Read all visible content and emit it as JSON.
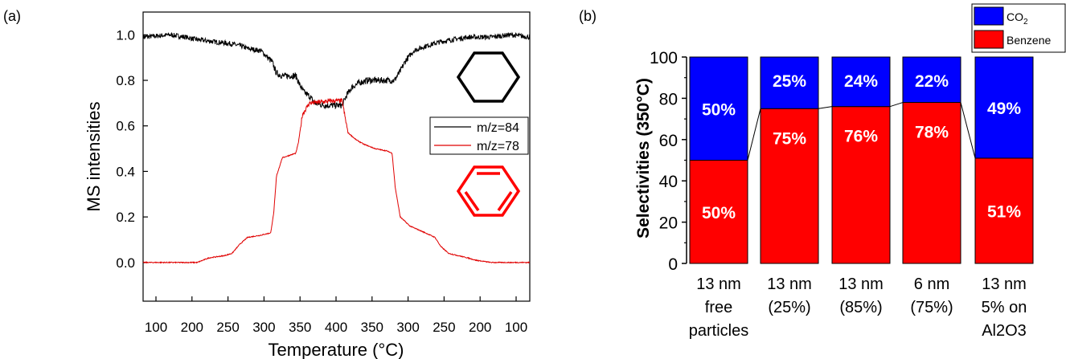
{
  "panels": {
    "a": {
      "label": "(a)"
    },
    "b": {
      "label": "(b)"
    }
  },
  "colors": {
    "m84": "#000000",
    "m78": "#e00000",
    "co2": "#0000ff",
    "benzene": "#ff0000",
    "bar_text": "#ffffff"
  },
  "icons": [
    "cyclohexane-structure-icon",
    "benzene-structure-icon"
  ],
  "chart_data": [
    {
      "type": "line",
      "panel": "(a)",
      "xlabel": "Temperature (°C)",
      "ylabel": "MS intensities",
      "x_ticks": [
        "100",
        "200",
        "250",
        "300",
        "350",
        "400",
        "350",
        "300",
        "250",
        "200",
        "100"
      ],
      "y_ticks": [
        "0.0",
        "0.2",
        "0.4",
        "0.6",
        "0.8",
        "1.0"
      ],
      "xlim": [
        0,
        100
      ],
      "ylim": [
        -0.17,
        1.1
      ],
      "x_note": "x is relative progress (0-100) along a heating ramp to ~400 °C followed by cooling; tick labels show the temperature",
      "legend": {
        "placement": "right",
        "entries": [
          "m/z=84",
          "m/z=78"
        ]
      },
      "series": [
        {
          "name": "m/z=84",
          "color": "#000000",
          "points": [
            [
              0,
              0.99
            ],
            [
              7,
              1.0
            ],
            [
              11,
              0.99
            ],
            [
              13.5,
              0.98
            ],
            [
              23,
              0.96
            ],
            [
              25.5,
              0.95
            ],
            [
              27,
              0.94
            ],
            [
              30.5,
              0.93
            ],
            [
              33.4,
              0.88
            ],
            [
              34.5,
              0.83
            ],
            [
              36,
              0.82
            ],
            [
              39.5,
              0.82
            ],
            [
              40.5,
              0.78
            ],
            [
              41.5,
              0.75
            ],
            [
              43,
              0.73
            ],
            [
              44.5,
              0.7
            ],
            [
              47,
              0.69
            ],
            [
              49,
              0.69
            ],
            [
              51.5,
              0.69
            ],
            [
              52.5,
              0.73
            ],
            [
              54,
              0.77
            ],
            [
              56,
              0.79
            ],
            [
              58,
              0.8
            ],
            [
              61,
              0.8
            ],
            [
              63.5,
              0.8
            ],
            [
              65,
              0.8
            ],
            [
              66.5,
              0.84
            ],
            [
              68,
              0.89
            ],
            [
              70,
              0.93
            ],
            [
              73,
              0.95
            ],
            [
              77,
              0.97
            ],
            [
              84,
              0.99
            ],
            [
              90,
              0.99
            ],
            [
              95,
              1.0
            ],
            [
              100,
              0.99
            ]
          ]
        },
        {
          "name": "m/z=78",
          "color": "#e00000",
          "points": [
            [
              0,
              0.0
            ],
            [
              14,
              0.0
            ],
            [
              17,
              0.02
            ],
            [
              21,
              0.03
            ],
            [
              23,
              0.04
            ],
            [
              25,
              0.08
            ],
            [
              27,
              0.11
            ],
            [
              30.5,
              0.12
            ],
            [
              33,
              0.13
            ],
            [
              33.8,
              0.22
            ],
            [
              34.5,
              0.38
            ],
            [
              36,
              0.46
            ],
            [
              39.5,
              0.48
            ],
            [
              40.2,
              0.53
            ],
            [
              41.2,
              0.65
            ],
            [
              43,
              0.7
            ],
            [
              49,
              0.71
            ],
            [
              51.5,
              0.71
            ],
            [
              52.2,
              0.64
            ],
            [
              53,
              0.57
            ],
            [
              55,
              0.54
            ],
            [
              57,
              0.52
            ],
            [
              60,
              0.5
            ],
            [
              63,
              0.49
            ],
            [
              64.4,
              0.48
            ],
            [
              65.2,
              0.33
            ],
            [
              66.5,
              0.2
            ],
            [
              69,
              0.16
            ],
            [
              73,
              0.13
            ],
            [
              75.5,
              0.11
            ],
            [
              77,
              0.07
            ],
            [
              79,
              0.04
            ],
            [
              84,
              0.02
            ],
            [
              86,
              0.01
            ],
            [
              90,
              0.0
            ],
            [
              100,
              0.0
            ]
          ]
        }
      ]
    },
    {
      "type": "bar",
      "stacked": true,
      "panel": "(b)",
      "ylabel": "Selectivities (350°C)",
      "ylim": [
        0,
        100
      ],
      "y_ticks": [
        "0",
        "20",
        "40",
        "60",
        "80",
        "100"
      ],
      "categories": [
        [
          "13 nm",
          "free",
          "particles"
        ],
        [
          "13 nm",
          "(25%)"
        ],
        [
          "13 nm",
          "(85%)"
        ],
        [
          "6 nm",
          "(75%)"
        ],
        [
          "13 nm",
          "5% on",
          "Al2O3"
        ]
      ],
      "legend": {
        "placement": "top-right",
        "entries": [
          "CO2",
          "Benzene"
        ]
      },
      "series": [
        {
          "name": "Benzene",
          "color": "#ff0000",
          "values": [
            50,
            75,
            76,
            78,
            51
          ],
          "labels": [
            "50%",
            "75%",
            "76%",
            "78%",
            "51%"
          ]
        },
        {
          "name": "CO2",
          "color": "#0000ff",
          "values": [
            50,
            25,
            24,
            22,
            49
          ],
          "labels": [
            "50%",
            "25%",
            "24%",
            "22%",
            "49%"
          ]
        }
      ]
    }
  ]
}
